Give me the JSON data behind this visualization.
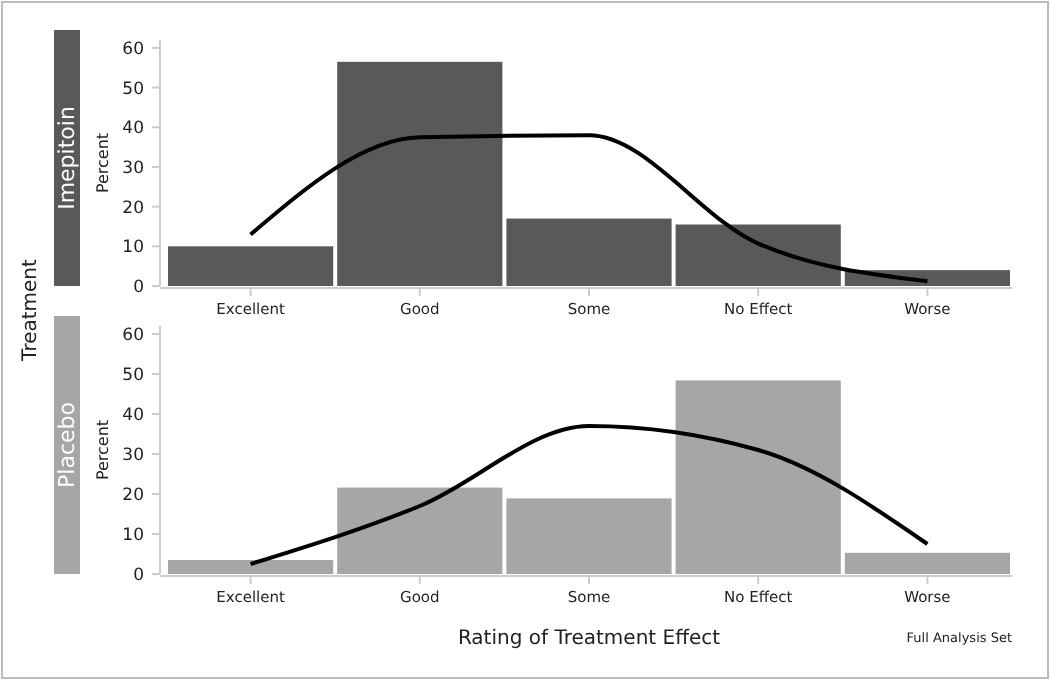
{
  "chart_data": [
    {
      "type": "bar",
      "title": "Imepitoin",
      "ylabel": "Percent",
      "annotations": [
        "Treatment"
      ],
      "categories": [
        "Excellent",
        "Good",
        "Some",
        "No Effect",
        "Worse"
      ],
      "ylim": [
        0,
        62
      ],
      "yticks": [
        0,
        10,
        20,
        30,
        40,
        50,
        60
      ],
      "grid": false,
      "series": [
        {
          "color": "#595959",
          "values": [
            10,
            56.5,
            17,
            15.5,
            4
          ]
        },
        {
          "type": "line",
          "color": "#000000",
          "values": [
            13,
            37.5,
            38,
            10.7,
            1.2
          ]
        }
      ]
    },
    {
      "type": "bar",
      "title": "Placebo",
      "ylabel": "Percent",
      "xlabel": "Rating of Treatment Effect",
      "annotations": [
        "Full Analysis Set"
      ],
      "categories": [
        "Excellent",
        "Good",
        "Some",
        "No Effect",
        "Worse"
      ],
      "ylim": [
        0,
        62
      ],
      "yticks": [
        0,
        10,
        20,
        30,
        40,
        50,
        60
      ],
      "grid": false,
      "series": [
        {
          "color": "#a6a6a6",
          "values": [
            3.5,
            21.6,
            18.9,
            48.4,
            5.3
          ]
        },
        {
          "type": "line",
          "color": "#000000",
          "values": [
            2.5,
            17,
            37,
            31,
            7.5
          ]
        }
      ]
    }
  ]
}
